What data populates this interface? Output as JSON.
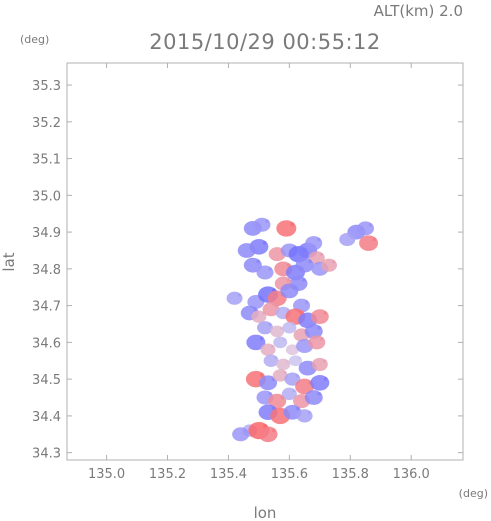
{
  "chart_data": {
    "type": "heatmap",
    "title": "2015/10/29 00:55:12",
    "subtitle": "ALT(km) 2.0",
    "xlabel": "lon",
    "ylabel": "lat",
    "x_unit": "(deg)",
    "y_unit": "(deg)",
    "xlim": [
      134.87,
      136.17
    ],
    "ylim": [
      34.28,
      35.36
    ],
    "x_ticks": [
      "135.0",
      "135.2",
      "135.4",
      "135.6",
      "135.8",
      "136.0"
    ],
    "y_ticks": [
      "34.3",
      "34.4",
      "34.5",
      "34.6",
      "34.7",
      "34.8",
      "34.9",
      "35.0",
      "35.1",
      "35.2",
      "35.3"
    ],
    "grid": false,
    "colors": {
      "positive": "#ff5a5a",
      "negative": "#5a5aff",
      "neutral": "#d9d0ee"
    },
    "cells": [
      {
        "lon": 135.48,
        "lat": 34.91,
        "v": -0.6
      },
      {
        "lon": 135.51,
        "lat": 34.92,
        "v": -0.5
      },
      {
        "lon": 135.59,
        "lat": 34.91,
        "v": 0.8
      },
      {
        "lon": 135.82,
        "lat": 34.9,
        "v": -0.6
      },
      {
        "lon": 135.85,
        "lat": 34.91,
        "v": -0.5
      },
      {
        "lon": 135.86,
        "lat": 34.87,
        "v": 0.7
      },
      {
        "lon": 135.79,
        "lat": 34.88,
        "v": -0.4
      },
      {
        "lon": 135.5,
        "lat": 34.86,
        "v": -0.7
      },
      {
        "lon": 135.46,
        "lat": 34.85,
        "v": -0.6
      },
      {
        "lon": 135.56,
        "lat": 34.84,
        "v": 0.5
      },
      {
        "lon": 135.6,
        "lat": 34.85,
        "v": -0.5
      },
      {
        "lon": 135.63,
        "lat": 34.84,
        "v": -0.8
      },
      {
        "lon": 135.66,
        "lat": 34.85,
        "v": -0.7
      },
      {
        "lon": 135.69,
        "lat": 34.83,
        "v": 0.4
      },
      {
        "lon": 135.68,
        "lat": 34.87,
        "v": -0.5
      },
      {
        "lon": 135.48,
        "lat": 34.81,
        "v": -0.6
      },
      {
        "lon": 135.52,
        "lat": 34.79,
        "v": -0.5
      },
      {
        "lon": 135.58,
        "lat": 34.8,
        "v": 0.6
      },
      {
        "lon": 135.62,
        "lat": 34.79,
        "v": -0.7
      },
      {
        "lon": 135.65,
        "lat": 34.81,
        "v": -0.6
      },
      {
        "lon": 135.7,
        "lat": 34.8,
        "v": -0.5
      },
      {
        "lon": 135.73,
        "lat": 34.81,
        "v": 0.4
      },
      {
        "lon": 135.63,
        "lat": 34.76,
        "v": -0.6
      },
      {
        "lon": 135.58,
        "lat": 34.76,
        "v": 0.5
      },
      {
        "lon": 135.42,
        "lat": 34.72,
        "v": -0.4
      },
      {
        "lon": 135.49,
        "lat": 34.71,
        "v": -0.5
      },
      {
        "lon": 135.53,
        "lat": 34.73,
        "v": -0.8
      },
      {
        "lon": 135.56,
        "lat": 34.72,
        "v": 0.7
      },
      {
        "lon": 135.6,
        "lat": 34.74,
        "v": -0.6
      },
      {
        "lon": 135.64,
        "lat": 34.7,
        "v": -0.5
      },
      {
        "lon": 135.47,
        "lat": 34.68,
        "v": -0.6
      },
      {
        "lon": 135.5,
        "lat": 34.67,
        "v": 0.3
      },
      {
        "lon": 135.54,
        "lat": 34.69,
        "v": 0.5
      },
      {
        "lon": 135.58,
        "lat": 34.68,
        "v": -0.3
      },
      {
        "lon": 135.62,
        "lat": 34.67,
        "v": 0.8
      },
      {
        "lon": 135.66,
        "lat": 34.66,
        "v": -0.7
      },
      {
        "lon": 135.7,
        "lat": 34.67,
        "v": 0.6
      },
      {
        "lon": 135.52,
        "lat": 34.64,
        "v": -0.4
      },
      {
        "lon": 135.56,
        "lat": 34.63,
        "v": 0.2
      },
      {
        "lon": 135.6,
        "lat": 34.64,
        "v": -0.2
      },
      {
        "lon": 135.64,
        "lat": 34.62,
        "v": 0.4
      },
      {
        "lon": 135.68,
        "lat": 34.63,
        "v": -0.6
      },
      {
        "lon": 135.49,
        "lat": 34.6,
        "v": -0.7
      },
      {
        "lon": 135.53,
        "lat": 34.58,
        "v": 0.3
      },
      {
        "lon": 135.57,
        "lat": 34.6,
        "v": -0.2
      },
      {
        "lon": 135.61,
        "lat": 34.58,
        "v": 0.1
      },
      {
        "lon": 135.65,
        "lat": 34.59,
        "v": -0.5
      },
      {
        "lon": 135.69,
        "lat": 34.6,
        "v": 0.5
      },
      {
        "lon": 135.54,
        "lat": 34.55,
        "v": -0.3
      },
      {
        "lon": 135.58,
        "lat": 34.54,
        "v": 0.2
      },
      {
        "lon": 135.62,
        "lat": 34.55,
        "v": -0.1
      },
      {
        "lon": 135.66,
        "lat": 34.53,
        "v": -0.6
      },
      {
        "lon": 135.7,
        "lat": 34.54,
        "v": 0.4
      },
      {
        "lon": 135.49,
        "lat": 34.5,
        "v": 0.8
      },
      {
        "lon": 135.53,
        "lat": 34.49,
        "v": -0.6
      },
      {
        "lon": 135.57,
        "lat": 34.51,
        "v": 0.3
      },
      {
        "lon": 135.61,
        "lat": 34.5,
        "v": -0.4
      },
      {
        "lon": 135.65,
        "lat": 34.48,
        "v": 0.7
      },
      {
        "lon": 135.7,
        "lat": 34.49,
        "v": -0.7
      },
      {
        "lon": 135.52,
        "lat": 34.45,
        "v": -0.5
      },
      {
        "lon": 135.56,
        "lat": 34.44,
        "v": 0.6
      },
      {
        "lon": 135.6,
        "lat": 34.46,
        "v": -0.3
      },
      {
        "lon": 135.64,
        "lat": 34.44,
        "v": 0.5
      },
      {
        "lon": 135.68,
        "lat": 34.45,
        "v": -0.6
      },
      {
        "lon": 135.53,
        "lat": 34.41,
        "v": -0.7
      },
      {
        "lon": 135.57,
        "lat": 34.4,
        "v": 0.8
      },
      {
        "lon": 135.61,
        "lat": 34.41,
        "v": -0.6
      },
      {
        "lon": 135.65,
        "lat": 34.4,
        "v": -0.4
      },
      {
        "lon": 135.47,
        "lat": 34.36,
        "v": -0.3
      },
      {
        "lon": 135.5,
        "lat": 34.36,
        "v": 0.9
      },
      {
        "lon": 135.53,
        "lat": 34.35,
        "v": 0.7
      },
      {
        "lon": 135.44,
        "lat": 34.35,
        "v": -0.5
      }
    ]
  }
}
